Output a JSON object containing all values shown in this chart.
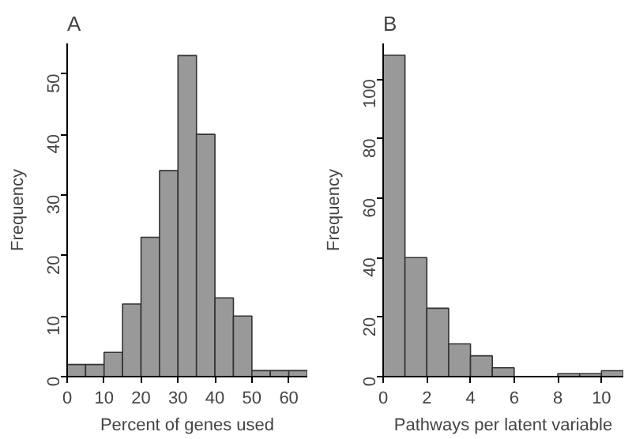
{
  "chart_data": [
    {
      "type": "histogram",
      "title": "A",
      "xlabel": "Percent of genes used",
      "ylabel": "Frequency",
      "color": "#999999",
      "bins": [
        0,
        5,
        10,
        15,
        20,
        25,
        30,
        35,
        40,
        45,
        50,
        55,
        60,
        65
      ],
      "values": [
        2,
        2,
        4,
        12,
        23,
        34,
        53,
        40,
        13,
        10,
        1,
        1,
        1
      ],
      "xlim": [
        0,
        65
      ],
      "ylim": [
        0,
        55
      ],
      "xticks": [
        0,
        10,
        20,
        30,
        40,
        50,
        60
      ],
      "yticks": [
        0,
        10,
        20,
        30,
        40,
        50
      ],
      "grid": false
    },
    {
      "type": "histogram",
      "title": "B",
      "xlabel": "Pathways per latent variable",
      "ylabel": "Frequency",
      "color": "#999999",
      "bins": [
        0,
        1,
        2,
        3,
        4,
        5,
        6,
        7,
        8,
        9,
        10,
        11
      ],
      "values": [
        108,
        40,
        23,
        11,
        7,
        3,
        0,
        0,
        1,
        1,
        2
      ],
      "xlim": [
        0,
        11
      ],
      "ylim": [
        0,
        112
      ],
      "xticks": [
        0,
        2,
        4,
        6,
        8,
        10
      ],
      "yticks": [
        0,
        20,
        40,
        60,
        80,
        100
      ],
      "grid": false
    }
  ]
}
